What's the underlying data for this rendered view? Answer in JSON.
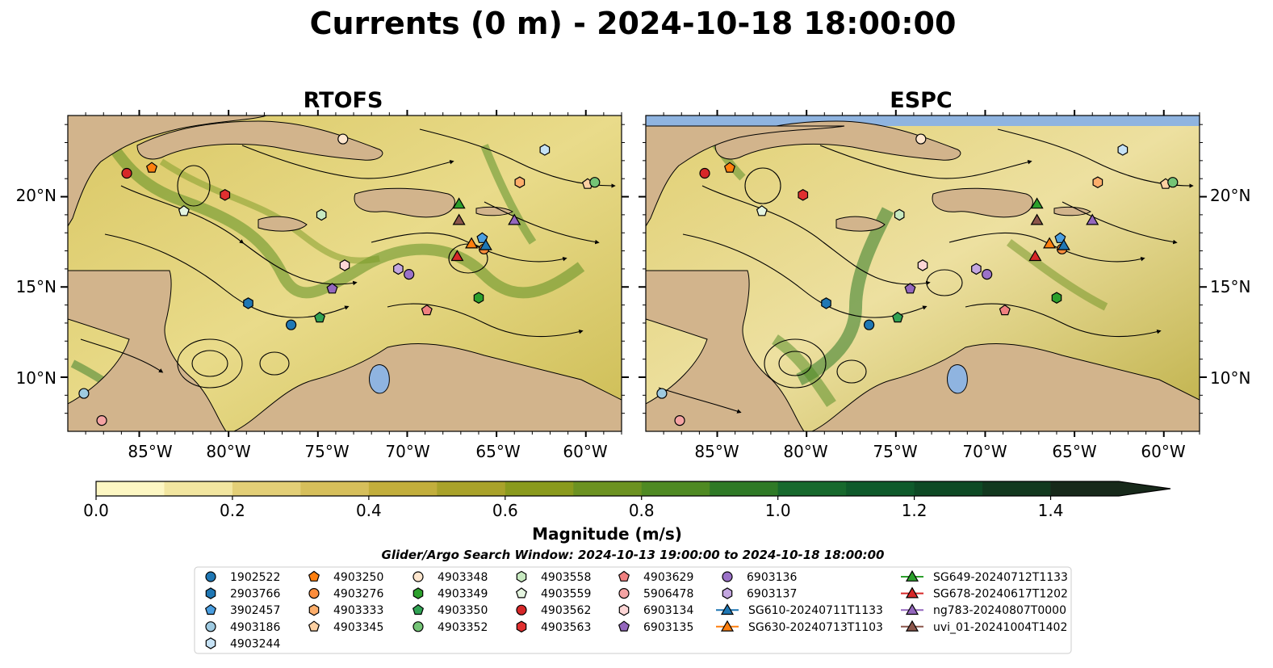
{
  "figure": {
    "title": "Currents (0 m) - 2024-10-18 18:00:00",
    "search_window": "Glider/Argo Search Window: 2024-10-13 19:00:00 to 2024-10-18 18:00:00"
  },
  "panels": [
    {
      "title": "RTOFS"
    },
    {
      "title": "ESPC"
    }
  ],
  "colorbar": {
    "label": "Magnitude (m/s)",
    "range": [
      0.0,
      1.5
    ],
    "extend": "max",
    "ticks": [
      "0.0",
      "0.2",
      "0.4",
      "0.6",
      "0.8",
      "1.0",
      "1.2",
      "1.4"
    ],
    "colors": [
      "#fdf7c3",
      "#f2e6a0",
      "#e3cf77",
      "#d6bf5b",
      "#c2ae3c",
      "#a9a22a",
      "#8a9a1d",
      "#6c9221",
      "#4f8a23",
      "#2f7a26",
      "#17692d",
      "#0f5a2b",
      "#0e4a25",
      "#12391f",
      "#17291a"
    ]
  },
  "map": {
    "lon_range": [
      -89,
      -58
    ],
    "lat_range": [
      7,
      24.5
    ],
    "land_color": "#d2b48c",
    "water_body_color": "#8fb4e0",
    "x_tick_labels": [
      "85°W",
      "80°W",
      "75°W",
      "70°W",
      "65°W",
      "60°W"
    ],
    "y_tick_labels": [
      "10°N",
      "15°N",
      "20°N"
    ]
  },
  "chart_data": {
    "type": "scatter",
    "title": "Currents (0 m) - 2024-10-18 18:00:00",
    "xlabel": "",
    "ylabel": "",
    "xlim": [
      -89,
      -58
    ],
    "ylim": [
      7,
      24.5
    ],
    "series": [
      {
        "name": "1902522",
        "marker": "circle",
        "color": "#1f77b4",
        "lon": -76.5,
        "lat": 12.9
      },
      {
        "name": "2903766",
        "marker": "hexagon",
        "color": "#1f77b4",
        "lon": -78.9,
        "lat": 14.1
      },
      {
        "name": "3902457",
        "marker": "pentagon",
        "color": "#4a9ee0",
        "lon": -65.8,
        "lat": 17.7
      },
      {
        "name": "4903186",
        "marker": "circle",
        "color": "#9ecae1",
        "lon": -88.1,
        "lat": 9.1
      },
      {
        "name": "4903244",
        "marker": "hexagon",
        "color": "#c6e2f5",
        "lon": -62.3,
        "lat": 22.6
      },
      {
        "name": "4903250",
        "marker": "pentagon",
        "color": "#ff7f0e",
        "lon": -84.3,
        "lat": 21.6
      },
      {
        "name": "4903276",
        "marker": "circle",
        "color": "#fd8d3c",
        "lon": -65.7,
        "lat": 17.1
      },
      {
        "name": "4903333",
        "marker": "hexagon",
        "color": "#fdae6b",
        "lon": -63.7,
        "lat": 20.8
      },
      {
        "name": "4903345",
        "marker": "pentagon",
        "color": "#fdd0a2",
        "lon": -59.9,
        "lat": 20.7
      },
      {
        "name": "4903348",
        "marker": "circle",
        "color": "#fee6ce",
        "lon": -73.6,
        "lat": 23.2
      },
      {
        "name": "4903349",
        "marker": "hexagon",
        "color": "#2ca02c",
        "lon": -66.0,
        "lat": 14.4
      },
      {
        "name": "4903350",
        "marker": "pentagon",
        "color": "#31a354",
        "lon": -74.9,
        "lat": 13.3
      },
      {
        "name": "4903352",
        "marker": "circle",
        "color": "#74c476",
        "lon": -59.5,
        "lat": 20.8
      },
      {
        "name": "4903558",
        "marker": "hexagon",
        "color": "#c7e9c0",
        "lon": -74.8,
        "lat": 19.0
      },
      {
        "name": "4903559",
        "marker": "pentagon",
        "color": "#e5f5e0",
        "lon": -82.5,
        "lat": 19.2
      },
      {
        "name": "4903562",
        "marker": "circle",
        "color": "#d62728",
        "lon": -85.7,
        "lat": 21.3
      },
      {
        "name": "4903563",
        "marker": "hexagon",
        "color": "#e03030",
        "lon": -80.2,
        "lat": 20.1
      },
      {
        "name": "4903629",
        "marker": "pentagon",
        "color": "#f08080",
        "lon": -68.9,
        "lat": 13.7
      },
      {
        "name": "5906478",
        "marker": "circle",
        "color": "#f4a3a3",
        "lon": -87.1,
        "lat": 7.6
      },
      {
        "name": "6903134",
        "marker": "hexagon",
        "color": "#fcd5d5",
        "lon": -73.5,
        "lat": 16.2
      },
      {
        "name": "6903135",
        "marker": "pentagon",
        "color": "#9467bd",
        "lon": -74.2,
        "lat": 14.9
      },
      {
        "name": "6903136",
        "marker": "circle",
        "color": "#9b72c8",
        "lon": -69.9,
        "lat": 15.7
      },
      {
        "name": "6903137",
        "marker": "hexagon",
        "color": "#c3a6e0",
        "lon": -70.5,
        "lat": 16.0
      },
      {
        "name": "SG610-20240711T1133",
        "marker": "triangle",
        "color": "#1f77b4",
        "lon": -65.6,
        "lat": 17.3
      },
      {
        "name": "SG630-20240713T1103",
        "marker": "triangle",
        "color": "#ff7f0e",
        "lon": -66.4,
        "lat": 17.4
      },
      {
        "name": "SG649-20240712T1133",
        "marker": "triangle",
        "color": "#2ca02c",
        "lon": -67.1,
        "lat": 19.6
      },
      {
        "name": "SG678-20240617T1202",
        "marker": "triangle",
        "color": "#d62728",
        "lon": -67.2,
        "lat": 16.7
      },
      {
        "name": "ng783-20240807T0000",
        "marker": "triangle",
        "color": "#9467bd",
        "lon": -64.0,
        "lat": 18.7
      },
      {
        "name": "uvi_01-20241004T1402",
        "marker": "triangle",
        "color": "#8c564b",
        "lon": -67.1,
        "lat": 18.7
      }
    ]
  }
}
